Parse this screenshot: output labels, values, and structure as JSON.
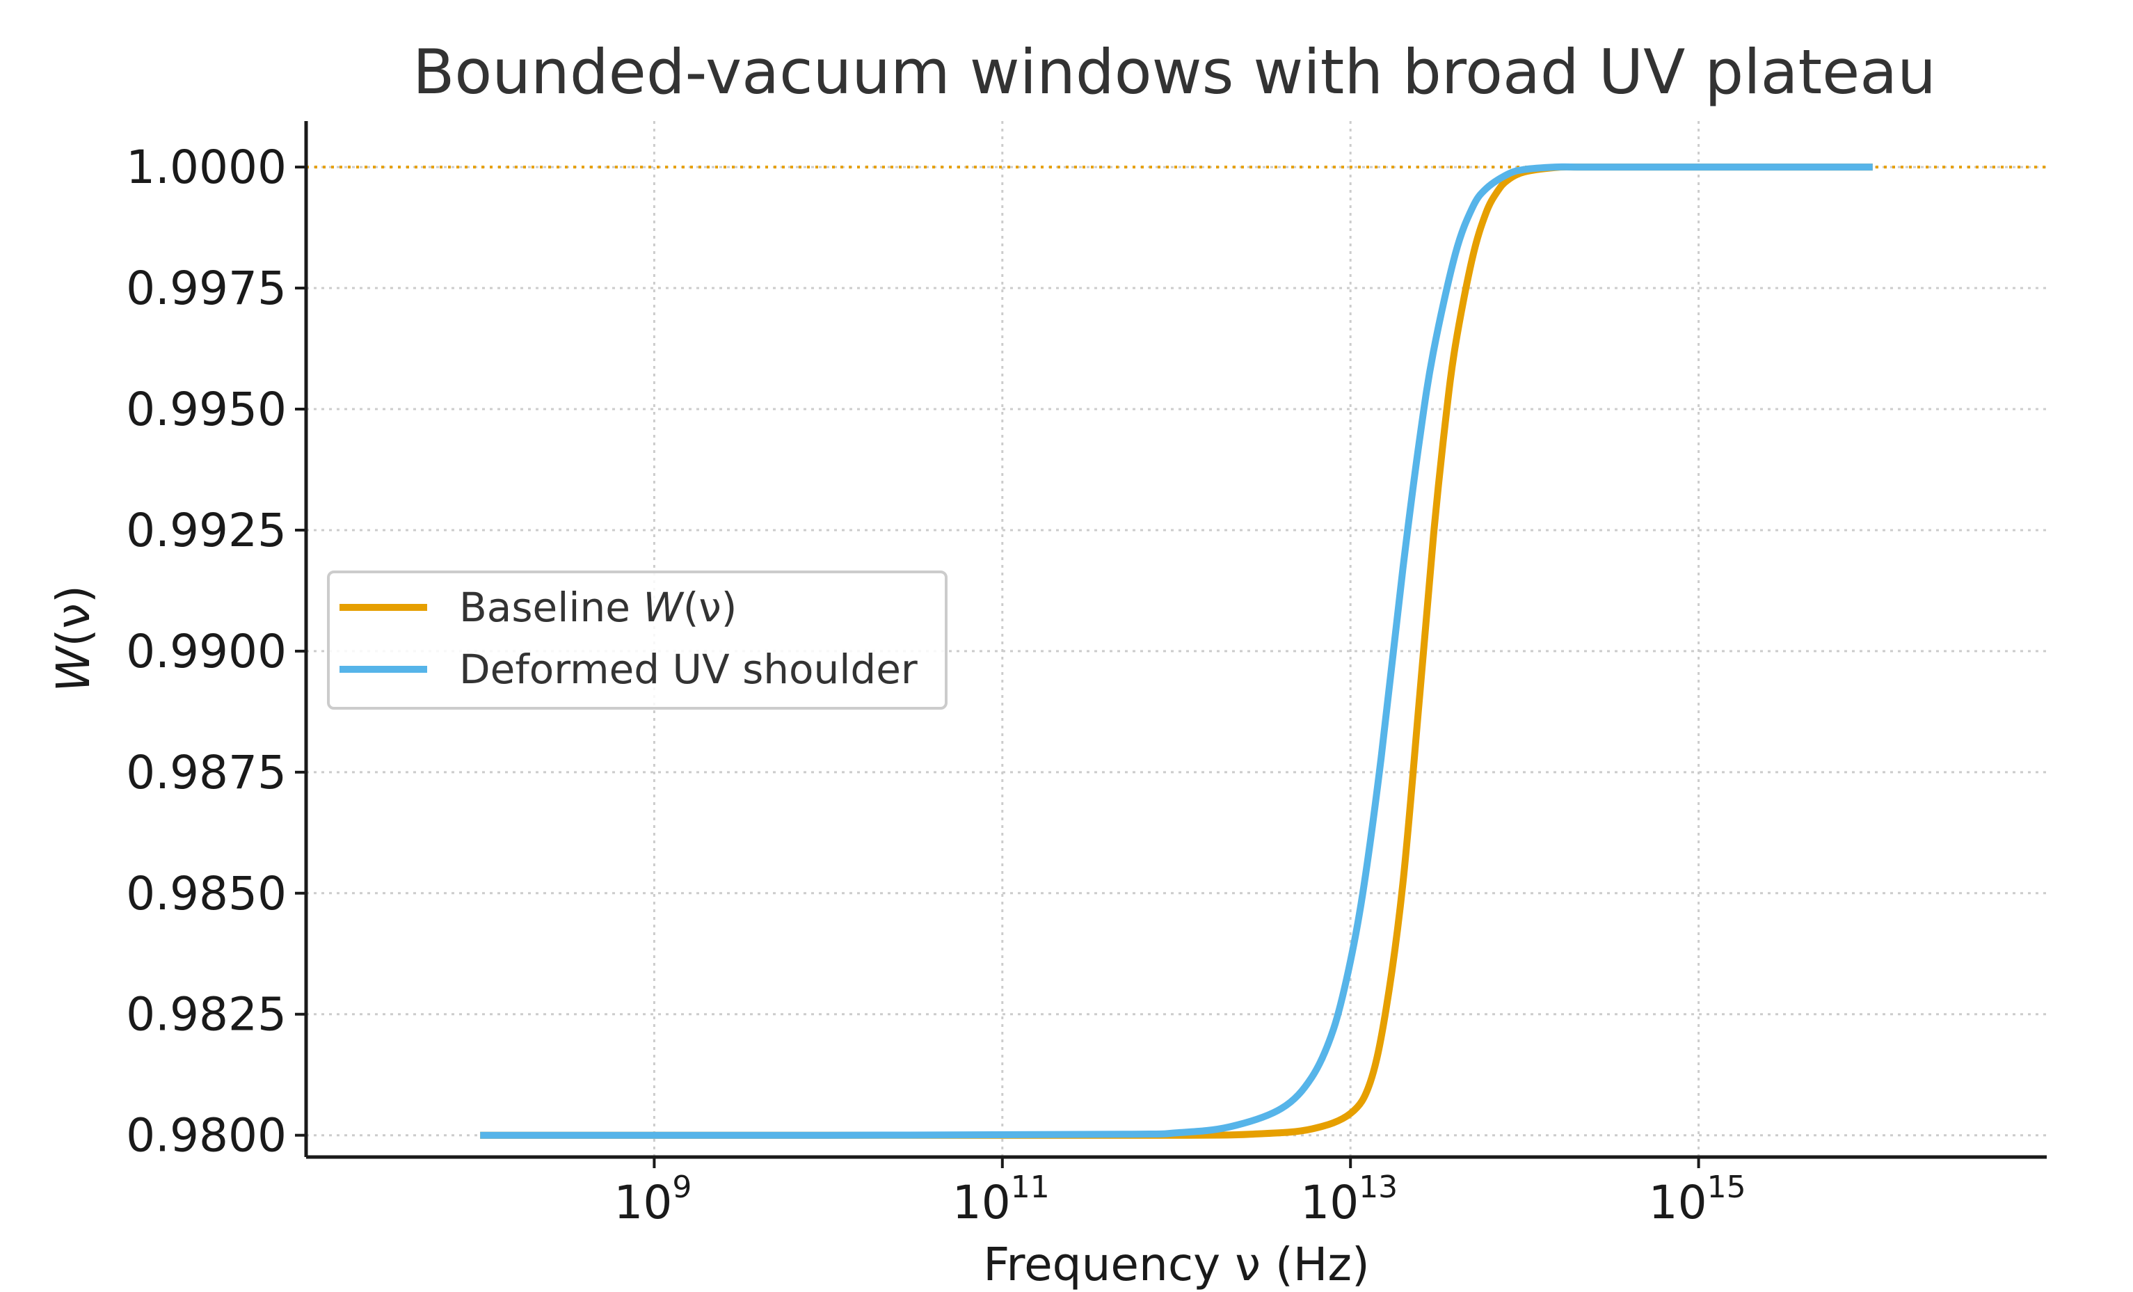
{
  "chart_data": {
    "type": "line",
    "title": "Bounded-vacuum windows with broad UV plateau",
    "xlabel": "Frequency ν (Hz)",
    "ylabel": "W(ν)",
    "x_scale": "log",
    "x_range": [
      10000000.0,
      1e+17
    ],
    "ylim": [
      0.97955,
      1.00095
    ],
    "x_ticks": [
      {
        "base": "10",
        "exp": "9",
        "value": 1000000000.0
      },
      {
        "base": "10",
        "exp": "11",
        "value": 100000000000.0
      },
      {
        "base": "10",
        "exp": "13",
        "value": 10000000000000.0
      },
      {
        "base": "10",
        "exp": "15",
        "value": 1000000000000000.0
      }
    ],
    "y_ticks": [
      "0.9800",
      "0.9825",
      "0.9850",
      "0.9875",
      "0.9900",
      "0.9925",
      "0.9950",
      "0.9975",
      "1.0000"
    ],
    "y_tick_values": [
      0.98,
      0.9825,
      0.985,
      0.9875,
      0.99,
      0.9925,
      0.995,
      0.9975,
      1.0
    ],
    "grid": true,
    "reference_line": {
      "y": 1.0,
      "style": "dotted",
      "color": "#E69F00"
    },
    "legend": {
      "position": "center-left",
      "entries": [
        {
          "prefix": "Baseline ",
          "math": "W",
          "suffix": "(ν)"
        },
        {
          "prefix": "Deformed UV shoulder",
          "math": "",
          "suffix": ""
        }
      ]
    },
    "series": [
      {
        "name": "Baseline W(ν)",
        "color": "#E69F00",
        "x": [
          100000000.0,
          10000000000.0,
          1000000000000.0,
          3000000000000.0,
          6000000000000.0,
          10000000000000.0,
          13000000000000.0,
          16000000000000.0,
          20000000000000.0,
          25000000000000.0,
          30000000000000.0,
          35000000000000.0,
          40000000000000.0,
          50000000000000.0,
          60000000000000.0,
          70000000000000.0,
          80000000000000.0,
          100000000000000.0,
          150000000000000.0,
          200000000000000.0,
          500000000000000.0,
          1e+16
        ],
        "y": [
          0.98,
          0.98,
          0.98,
          0.98003,
          0.98013,
          0.98045,
          0.9811,
          0.9826,
          0.9852,
          0.9891,
          0.9924,
          0.9947,
          0.9963,
          0.9981,
          0.99905,
          0.9995,
          0.99973,
          0.9999,
          0.99999,
          1.0,
          1.0,
          1.0
        ]
      },
      {
        "name": "Deformed UV shoulder",
        "color": "#56B4E9",
        "x": [
          100000000.0,
          10000000000.0,
          500000000000.0,
          1000000000000.0,
          2000000000000.0,
          4000000000000.0,
          6000000000000.0,
          8000000000000.0,
          10000000000000.0,
          12000000000000.0,
          15000000000000.0,
          20000000000000.0,
          25000000000000.0,
          30000000000000.0,
          40000000000000.0,
          50000000000000.0,
          60000000000000.0,
          80000000000000.0,
          100000000000000.0,
          150000000000000.0,
          200000000000000.0,
          500000000000000.0,
          1e+16
        ],
        "y": [
          0.98,
          0.98,
          0.98002,
          0.98005,
          0.98017,
          0.98055,
          0.9812,
          0.9822,
          0.9836,
          0.9852,
          0.9878,
          0.9917,
          0.9944,
          0.9962,
          0.9982,
          0.99915,
          0.99955,
          0.99985,
          0.99995,
          1.0,
          1.0,
          1.0,
          1.0
        ]
      }
    ]
  }
}
